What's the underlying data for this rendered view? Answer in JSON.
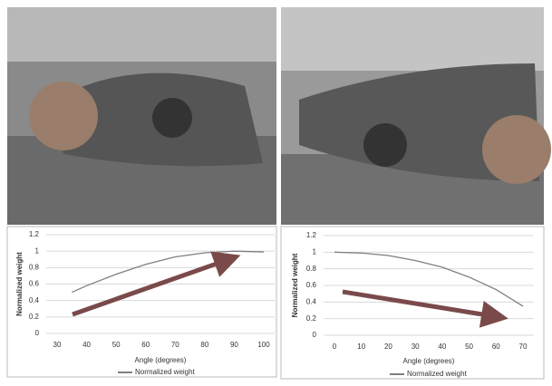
{
  "chart_data": [
    {
      "type": "line",
      "x": [
        35,
        40,
        50,
        60,
        70,
        80,
        90,
        100
      ],
      "series": [
        {
          "name": "Normalized weight",
          "color": "#7f7f7f",
          "values": [
            0.5,
            0.58,
            0.72,
            0.84,
            0.93,
            0.98,
            1.0,
            0.99
          ]
        }
      ],
      "x_label": "Angle (degrees)",
      "y_label": "Normalized weight",
      "xlim": [
        30,
        100
      ],
      "xticks": [
        30,
        40,
        50,
        60,
        70,
        80,
        90,
        100
      ],
      "ylim": [
        0,
        1.2
      ],
      "yticks": [
        0,
        0.2,
        0.4,
        0.6,
        0.8,
        1,
        1.2
      ],
      "grid": true,
      "legend": "bottom"
    },
    {
      "type": "line",
      "x": [
        0,
        10,
        20,
        30,
        40,
        50,
        60,
        70
      ],
      "series": [
        {
          "name": "Normalized weight",
          "color": "#7f7f7f",
          "values": [
            1.0,
            0.99,
            0.96,
            0.9,
            0.82,
            0.7,
            0.55,
            0.35
          ]
        }
      ],
      "x_label": "Angle (degrees)",
      "y_label": "Normalized weight",
      "xlim": [
        0,
        70
      ],
      "xticks": [
        0,
        10,
        20,
        30,
        40,
        50,
        60,
        70
      ],
      "ylim": [
        0,
        1.2
      ],
      "yticks": [
        0,
        0.2,
        0.4,
        0.6,
        0.8,
        1,
        1.2
      ],
      "grid": true,
      "legend": "bottom"
    }
  ]
}
